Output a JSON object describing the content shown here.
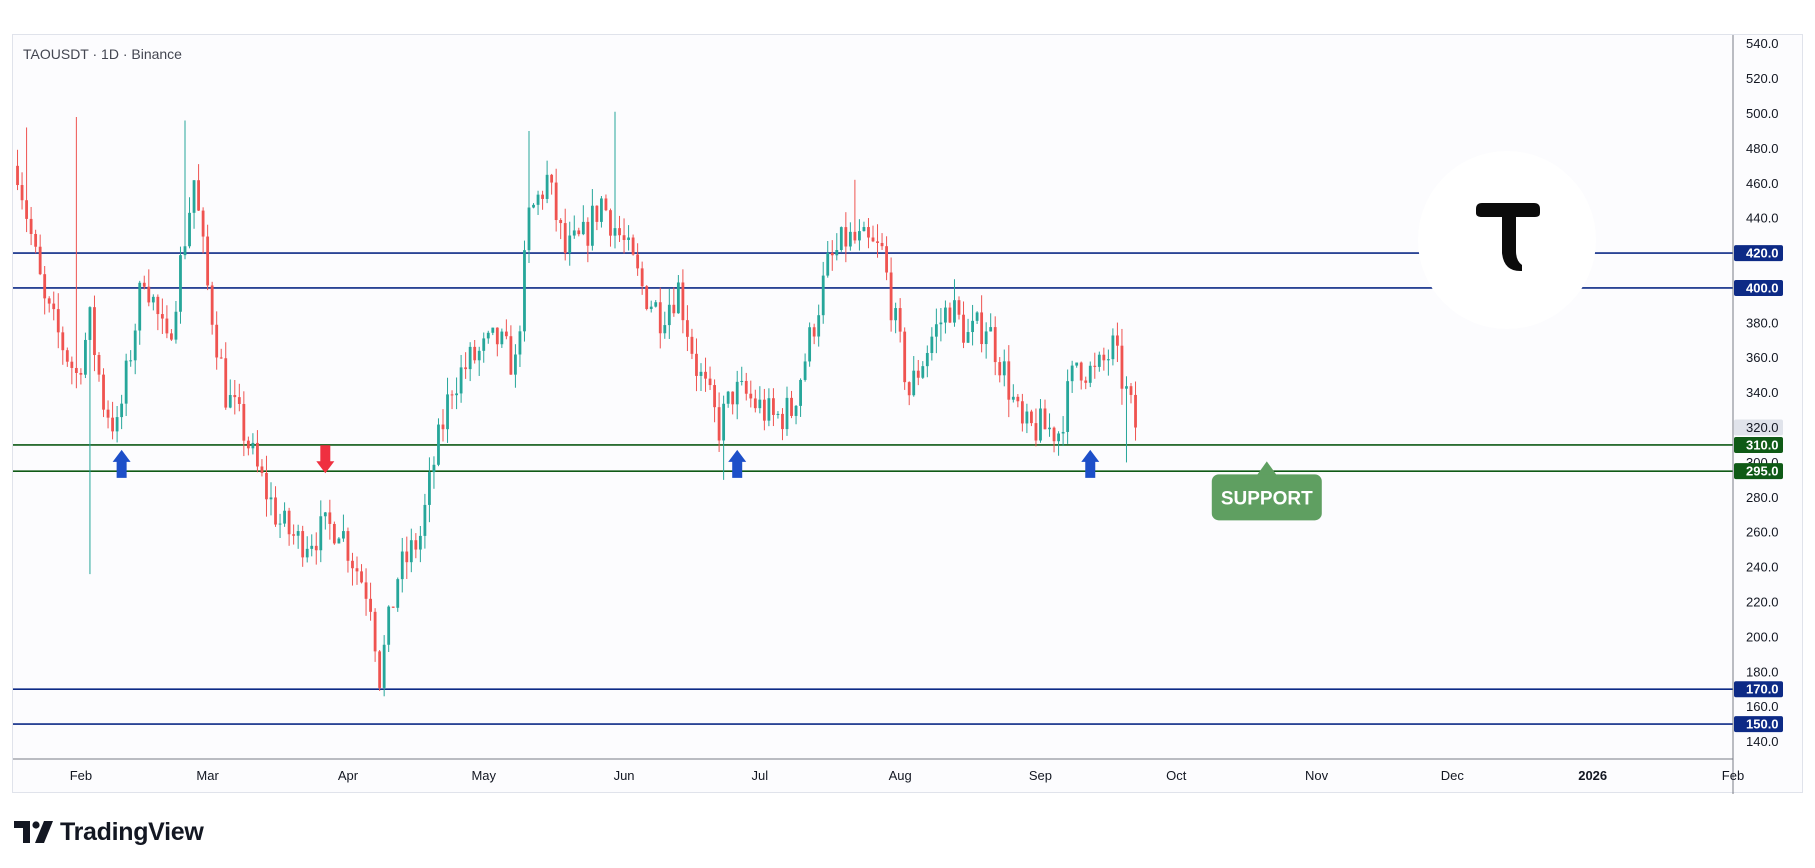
{
  "symbol_label": "TAOUSDT · 1D · Binance",
  "brand": {
    "name": "TradingView"
  },
  "colors": {
    "up": "#26a69a",
    "down": "#ef5350",
    "resistance_line": "#0d2a86",
    "support_line": "#0f5a16",
    "support_label": "#5f9f61",
    "arrow_up": "#1d4fc9",
    "arrow_down": "#ef3040",
    "current_price_tag": "#e0e3eb"
  },
  "chart_data": {
    "type": "candlestick",
    "title": "",
    "xlabel": "",
    "ylabel": "",
    "ylim": [
      130,
      545
    ],
    "y_ticks": [
      "140.0",
      "160.0",
      "180.0",
      "200.0",
      "220.0",
      "240.0",
      "260.0",
      "280.0",
      "300.0",
      "320.0",
      "340.0",
      "360.0",
      "380.0",
      "400.0",
      "420.0",
      "440.0",
      "460.0",
      "480.0",
      "500.0",
      "520.0",
      "540.0"
    ],
    "x_ticks": [
      {
        "label": "Feb",
        "date": "2025-02-01"
      },
      {
        "label": "Mar",
        "date": "2025-03-01"
      },
      {
        "label": "Apr",
        "date": "2025-04-01"
      },
      {
        "label": "May",
        "date": "2025-05-01"
      },
      {
        "label": "Jun",
        "date": "2025-06-01"
      },
      {
        "label": "Jul",
        "date": "2025-07-01"
      },
      {
        "label": "Aug",
        "date": "2025-08-01"
      },
      {
        "label": "Sep",
        "date": "2025-09-01"
      },
      {
        "label": "Oct",
        "date": "2025-10-01"
      },
      {
        "label": "Nov",
        "date": "2025-11-01"
      },
      {
        "label": "Dec",
        "date": "2025-12-01"
      },
      {
        "label": "2026",
        "date": "2026-01-01"
      },
      {
        "label": "Feb",
        "date": "2026-02-01"
      }
    ],
    "x_start": "2025-01-17",
    "x_end": "2026-02-01",
    "first_candle_date": "2025-01-18",
    "price_path": [
      [
        "2025-01-18",
        470
      ],
      [
        "2025-01-24",
        390
      ],
      [
        "2025-01-31",
        350
      ],
      [
        "2025-02-03",
        380
      ],
      [
        "2025-02-06",
        335
      ],
      [
        "2025-02-09",
        318
      ],
      [
        "2025-02-15",
        410
      ],
      [
        "2025-02-20",
        365
      ],
      [
        "2025-02-26",
        462
      ],
      [
        "2025-03-01",
        400
      ],
      [
        "2025-03-05",
        340
      ],
      [
        "2025-03-09",
        318
      ],
      [
        "2025-03-12",
        295
      ],
      [
        "2025-03-17",
        265
      ],
      [
        "2025-03-21",
        255
      ],
      [
        "2025-03-26",
        260
      ],
      [
        "2025-03-30",
        265
      ],
      [
        "2025-04-02",
        245
      ],
      [
        "2025-04-06",
        222
      ],
      [
        "2025-04-08",
        178
      ],
      [
        "2025-04-12",
        235
      ],
      [
        "2025-04-17",
        258
      ],
      [
        "2025-04-20",
        300
      ],
      [
        "2025-04-24",
        345
      ],
      [
        "2025-04-28",
        358
      ],
      [
        "2025-05-04",
        370
      ],
      [
        "2025-05-08",
        355
      ],
      [
        "2025-05-11",
        440
      ],
      [
        "2025-05-15",
        462
      ],
      [
        "2025-05-19",
        420
      ],
      [
        "2025-05-23",
        428
      ],
      [
        "2025-05-27",
        450
      ],
      [
        "2025-06-01",
        425
      ],
      [
        "2025-06-05",
        400
      ],
      [
        "2025-06-09",
        385
      ],
      [
        "2025-06-13",
        400
      ],
      [
        "2025-06-17",
        355
      ],
      [
        "2025-06-22",
        320
      ],
      [
        "2025-06-25",
        340
      ],
      [
        "2025-06-28",
        338
      ],
      [
        "2025-07-04",
        325
      ],
      [
        "2025-07-08",
        330
      ],
      [
        "2025-07-12",
        370
      ],
      [
        "2025-07-16",
        412
      ],
      [
        "2025-07-20",
        428
      ],
      [
        "2025-07-24",
        425
      ],
      [
        "2025-07-28",
        420
      ],
      [
        "2025-07-31",
        378
      ],
      [
        "2025-08-03",
        340
      ],
      [
        "2025-08-08",
        372
      ],
      [
        "2025-08-12",
        390
      ],
      [
        "2025-08-16",
        372
      ],
      [
        "2025-08-20",
        380
      ],
      [
        "2025-08-24",
        352
      ],
      [
        "2025-08-28",
        318
      ],
      [
        "2025-09-01",
        320
      ],
      [
        "2025-09-05",
        318
      ],
      [
        "2025-09-09",
        358
      ],
      [
        "2025-09-13",
        350
      ],
      [
        "2025-09-17",
        365
      ],
      [
        "2025-09-19",
        348
      ],
      [
        "2025-09-21",
        330
      ],
      [
        "2025-09-22",
        318
      ]
    ],
    "extreme_wicks": [
      {
        "date": "2025-01-20",
        "high": 492
      },
      {
        "date": "2025-01-31",
        "high": 498
      },
      {
        "date": "2025-02-03",
        "low": 236
      },
      {
        "date": "2025-02-24",
        "high": 496
      },
      {
        "date": "2025-04-08",
        "low": 169
      },
      {
        "date": "2025-05-11",
        "high": 490
      },
      {
        "date": "2025-05-30",
        "high": 501
      },
      {
        "date": "2025-06-23",
        "low": 290
      },
      {
        "date": "2025-07-22",
        "high": 462
      },
      {
        "date": "2025-08-13",
        "high": 405
      },
      {
        "date": "2025-09-20",
        "low": 300
      }
    ],
    "horizontal_levels": [
      {
        "value": 420,
        "label": "420.0",
        "kind": "resistance"
      },
      {
        "value": 400,
        "label": "400.0",
        "kind": "resistance"
      },
      {
        "value": 310,
        "label": "310.0",
        "kind": "support"
      },
      {
        "value": 295,
        "label": "295.0",
        "kind": "support"
      },
      {
        "value": 170,
        "label": "170.0",
        "kind": "resistance"
      },
      {
        "value": 150,
        "label": "150.0",
        "kind": "resistance"
      }
    ],
    "current_price": {
      "value": 320,
      "label": "320.0"
    },
    "annotations": [
      {
        "type": "arrow-up",
        "date": "2025-02-10",
        "price": 298
      },
      {
        "type": "arrow-down",
        "date": "2025-03-27",
        "price": 303
      },
      {
        "type": "arrow-up",
        "date": "2025-06-26",
        "price": 298
      },
      {
        "type": "arrow-up",
        "date": "2025-09-12",
        "price": 298
      },
      {
        "type": "label",
        "text": "SUPPORT",
        "date": "2025-10-21",
        "price": 280
      }
    ],
    "grid": false,
    "legend": "none"
  }
}
